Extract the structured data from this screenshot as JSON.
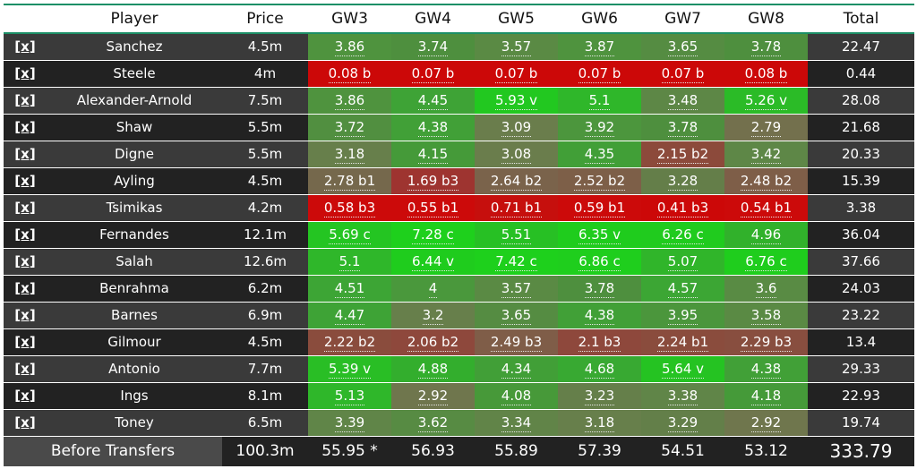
{
  "headers": [
    "",
    "Player",
    "Price",
    "GW3",
    "GW4",
    "GW5",
    "GW6",
    "GW7",
    "GW8",
    "Total"
  ],
  "remove_label": "[x]",
  "colors": {
    "strong_green": "#1fc81f",
    "green": "#37a537",
    "mid_green": "#4e8f3e",
    "olive": "#6a7a4e",
    "brown": "#8b4a3c",
    "red_brown": "#a52f2a",
    "red": "#cc0808"
  },
  "rows": [
    {
      "player": "Sanchez",
      "price": "4.5m",
      "total": "22.47",
      "gw": [
        {
          "v": "3.86",
          "c": "#4f933e"
        },
        {
          "v": "3.74",
          "c": "#4e8f3e"
        },
        {
          "v": "3.57",
          "c": "#5a8a44"
        },
        {
          "v": "3.87",
          "c": "#4f933e"
        },
        {
          "v": "3.65",
          "c": "#558c42"
        },
        {
          "v": "3.78",
          "c": "#4e8f3e"
        }
      ]
    },
    {
      "player": "Steele",
      "price": "4m",
      "total": "0.44",
      "gw": [
        {
          "v": "0.08 b",
          "c": "#cc0808"
        },
        {
          "v": "0.07 b",
          "c": "#cc0808"
        },
        {
          "v": "0.07 b",
          "c": "#cc0808"
        },
        {
          "v": "0.07 b",
          "c": "#cc0808"
        },
        {
          "v": "0.07 b",
          "c": "#cc0808"
        },
        {
          "v": "0.08 b",
          "c": "#cc0808"
        }
      ]
    },
    {
      "player": "Alexander-Arnold",
      "price": "7.5m",
      "total": "28.08",
      "gw": [
        {
          "v": "3.86",
          "c": "#4f933e"
        },
        {
          "v": "4.45",
          "c": "#3ea336"
        },
        {
          "v": "5.93 v",
          "c": "#22c820"
        },
        {
          "v": "5.1",
          "c": "#2fb72a"
        },
        {
          "v": "3.48",
          "c": "#5d8746"
        },
        {
          "v": "5.26 v",
          "c": "#2bbb27"
        }
      ]
    },
    {
      "player": "Shaw",
      "price": "5.5m",
      "total": "21.68",
      "gw": [
        {
          "v": "3.72",
          "c": "#518f40"
        },
        {
          "v": "4.38",
          "c": "#41a037"
        },
        {
          "v": "3.09",
          "c": "#6a7d4c"
        },
        {
          "v": "3.92",
          "c": "#4c963d"
        },
        {
          "v": "3.78",
          "c": "#4e8f3e"
        },
        {
          "v": "2.79",
          "c": "#73704d"
        }
      ]
    },
    {
      "player": "Digne",
      "price": "5.5m",
      "total": "20.33",
      "gw": [
        {
          "v": "3.18",
          "c": "#677f4b"
        },
        {
          "v": "4.15",
          "c": "#459a39"
        },
        {
          "v": "3.08",
          "c": "#6a7d4c"
        },
        {
          "v": "4.35",
          "c": "#419f37"
        },
        {
          "v": "2.15 b2",
          "c": "#8c4a3b"
        },
        {
          "v": "3.42",
          "c": "#5e8747"
        }
      ]
    },
    {
      "player": "Ayling",
      "price": "4.5m",
      "total": "15.39",
      "gw": [
        {
          "v": "2.78 b1",
          "c": "#75684c"
        },
        {
          "v": "1.69 b3",
          "c": "#9e3430"
        },
        {
          "v": "2.64 b2",
          "c": "#7a634b"
        },
        {
          "v": "2.52 b2",
          "c": "#7d5f48"
        },
        {
          "v": "3.28",
          "c": "#647e49"
        },
        {
          "v": "2.48 b2",
          "c": "#7e5e48"
        }
      ]
    },
    {
      "player": "Tsimikas",
      "price": "4.2m",
      "total": "3.38",
      "gw": [
        {
          "v": "0.58 b3",
          "c": "#cc0a0a"
        },
        {
          "v": "0.55 b1",
          "c": "#cc0a0a"
        },
        {
          "v": "0.71 b1",
          "c": "#c60f0d"
        },
        {
          "v": "0.59 b1",
          "c": "#cc0a0a"
        },
        {
          "v": "0.41 b3",
          "c": "#cc0808"
        },
        {
          "v": "0.54 b1",
          "c": "#cc0a0a"
        }
      ]
    },
    {
      "player": "Fernandes",
      "price": "12.1m",
      "total": "36.04",
      "gw": [
        {
          "v": "5.69 c",
          "c": "#24c522"
        },
        {
          "v": "7.28 c",
          "c": "#1ed01c"
        },
        {
          "v": "5.51",
          "c": "#27c024"
        },
        {
          "v": "6.35 v",
          "c": "#1fcc1d"
        },
        {
          "v": "6.26 c",
          "c": "#20cb1e"
        },
        {
          "v": "4.96",
          "c": "#31b12b"
        }
      ]
    },
    {
      "player": "Salah",
      "price": "12.6m",
      "total": "37.66",
      "gw": [
        {
          "v": "5.1",
          "c": "#2fb72a"
        },
        {
          "v": "6.44 v",
          "c": "#1fcc1d"
        },
        {
          "v": "7.42 c",
          "c": "#1ed01c"
        },
        {
          "v": "6.86 c",
          "c": "#1fce1d"
        },
        {
          "v": "5.07",
          "c": "#30b52a"
        },
        {
          "v": "6.76 c",
          "c": "#1fcd1d"
        }
      ]
    },
    {
      "player": "Benrahma",
      "price": "6.2m",
      "total": "24.03",
      "gw": [
        {
          "v": "4.51",
          "c": "#3da535"
        },
        {
          "v": "4",
          "c": "#4a983c"
        },
        {
          "v": "3.57",
          "c": "#5a8a44"
        },
        {
          "v": "3.78",
          "c": "#4e8f3e"
        },
        {
          "v": "4.57",
          "c": "#3ca634"
        },
        {
          "v": "3.6",
          "c": "#598b44"
        }
      ]
    },
    {
      "player": "Barnes",
      "price": "6.9m",
      "total": "23.22",
      "gw": [
        {
          "v": "4.47",
          "c": "#3ea336"
        },
        {
          "v": "3.2",
          "c": "#677f4b"
        },
        {
          "v": "3.65",
          "c": "#558c42"
        },
        {
          "v": "4.38",
          "c": "#41a037"
        },
        {
          "v": "3.95",
          "c": "#4b963c"
        },
        {
          "v": "3.58",
          "c": "#5a8a44"
        }
      ]
    },
    {
      "player": "Gilmour",
      "price": "4.5m",
      "total": "13.4",
      "gw": [
        {
          "v": "2.22 b2",
          "c": "#8a4c3d"
        },
        {
          "v": "2.06 b2",
          "c": "#8e483c"
        },
        {
          "v": "2.49 b3",
          "c": "#7f5d48"
        },
        {
          "v": "2.1 b3",
          "c": "#8e483c"
        },
        {
          "v": "2.24 b1",
          "c": "#8a4c3d"
        },
        {
          "v": "2.29 b3",
          "c": "#884e3f"
        }
      ]
    },
    {
      "player": "Antonio",
      "price": "7.7m",
      "total": "29.33",
      "gw": [
        {
          "v": "5.39 v",
          "c": "#29be25"
        },
        {
          "v": "4.88",
          "c": "#33ae2d"
        },
        {
          "v": "4.34",
          "c": "#419f37"
        },
        {
          "v": "4.68",
          "c": "#38a932"
        },
        {
          "v": "5.64 v",
          "c": "#25c322"
        },
        {
          "v": "4.38",
          "c": "#41a037"
        }
      ]
    },
    {
      "player": "Ings",
      "price": "8.1m",
      "total": "22.93",
      "gw": [
        {
          "v": "5.13",
          "c": "#2fb72a"
        },
        {
          "v": "2.92",
          "c": "#6f764d"
        },
        {
          "v": "4.08",
          "c": "#479939"
        },
        {
          "v": "3.23",
          "c": "#657f4a"
        },
        {
          "v": "3.38",
          "c": "#608548"
        },
        {
          "v": "4.18",
          "c": "#459a39"
        }
      ]
    },
    {
      "player": "Toney",
      "price": "6.5m",
      "total": "19.74",
      "gw": [
        {
          "v": "3.39",
          "c": "#608548"
        },
        {
          "v": "3.62",
          "c": "#578b43"
        },
        {
          "v": "3.34",
          "c": "#618448"
        },
        {
          "v": "3.18",
          "c": "#677f4b"
        },
        {
          "v": "3.29",
          "c": "#637f49"
        },
        {
          "v": "2.92",
          "c": "#6f764d"
        }
      ]
    }
  ],
  "footer": {
    "label": "Before Transfers",
    "price": "100.3m",
    "gw": [
      "55.95 *",
      "56.93",
      "55.89",
      "57.39",
      "54.51",
      "53.12"
    ],
    "total": "333.79"
  }
}
